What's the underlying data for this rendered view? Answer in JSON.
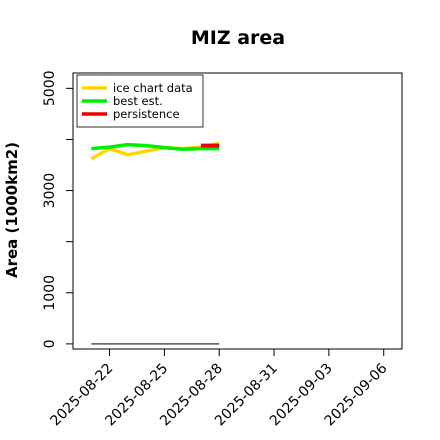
{
  "chart_data": {
    "type": "line",
    "title": "MIZ area",
    "xlabel": "",
    "ylabel": "Area (1000km2)",
    "x_type": "date",
    "xlim": [
      "2025-08-20",
      "2025-09-07"
    ],
    "ylim": [
      -100,
      5300
    ],
    "x_ticks": [
      "2025-08-22",
      "2025-08-25",
      "2025-08-28",
      "2025-08-31",
      "2025-09-03",
      "2025-09-06"
    ],
    "y_ticks": [
      0,
      1000,
      2000,
      3000,
      4000,
      5000
    ],
    "y_tick_labels": [
      "0",
      "1000",
      "",
      "3000",
      "",
      "5000"
    ],
    "legend_position": "top-left",
    "grid": false,
    "series": [
      {
        "name": "ice chart data",
        "color": "#FFD700",
        "x": [
          "2025-08-21",
          "2025-08-22",
          "2025-08-23",
          "2025-08-24",
          "2025-08-25",
          "2025-08-26",
          "2025-08-27",
          "2025-08-28"
        ],
        "y": [
          3620,
          3820,
          3700,
          3770,
          3840,
          3820,
          3850,
          3920
        ]
      },
      {
        "name": "best est.",
        "color": "#00EE00",
        "x": [
          "2025-08-21",
          "2025-08-22",
          "2025-08-23",
          "2025-08-24",
          "2025-08-25",
          "2025-08-26",
          "2025-08-27",
          "2025-08-28"
        ],
        "y": [
          3820,
          3850,
          3900,
          3880,
          3840,
          3810,
          3820,
          3820
        ]
      },
      {
        "name": "persistence",
        "color": "#EE0000",
        "x": [
          "2025-08-27",
          "2025-08-28"
        ],
        "y": [
          3880,
          3880
        ]
      }
    ],
    "baseline": {
      "color": "#555555",
      "x": [
        "2025-08-21",
        "2025-08-28"
      ],
      "y": [
        0,
        0
      ]
    }
  }
}
